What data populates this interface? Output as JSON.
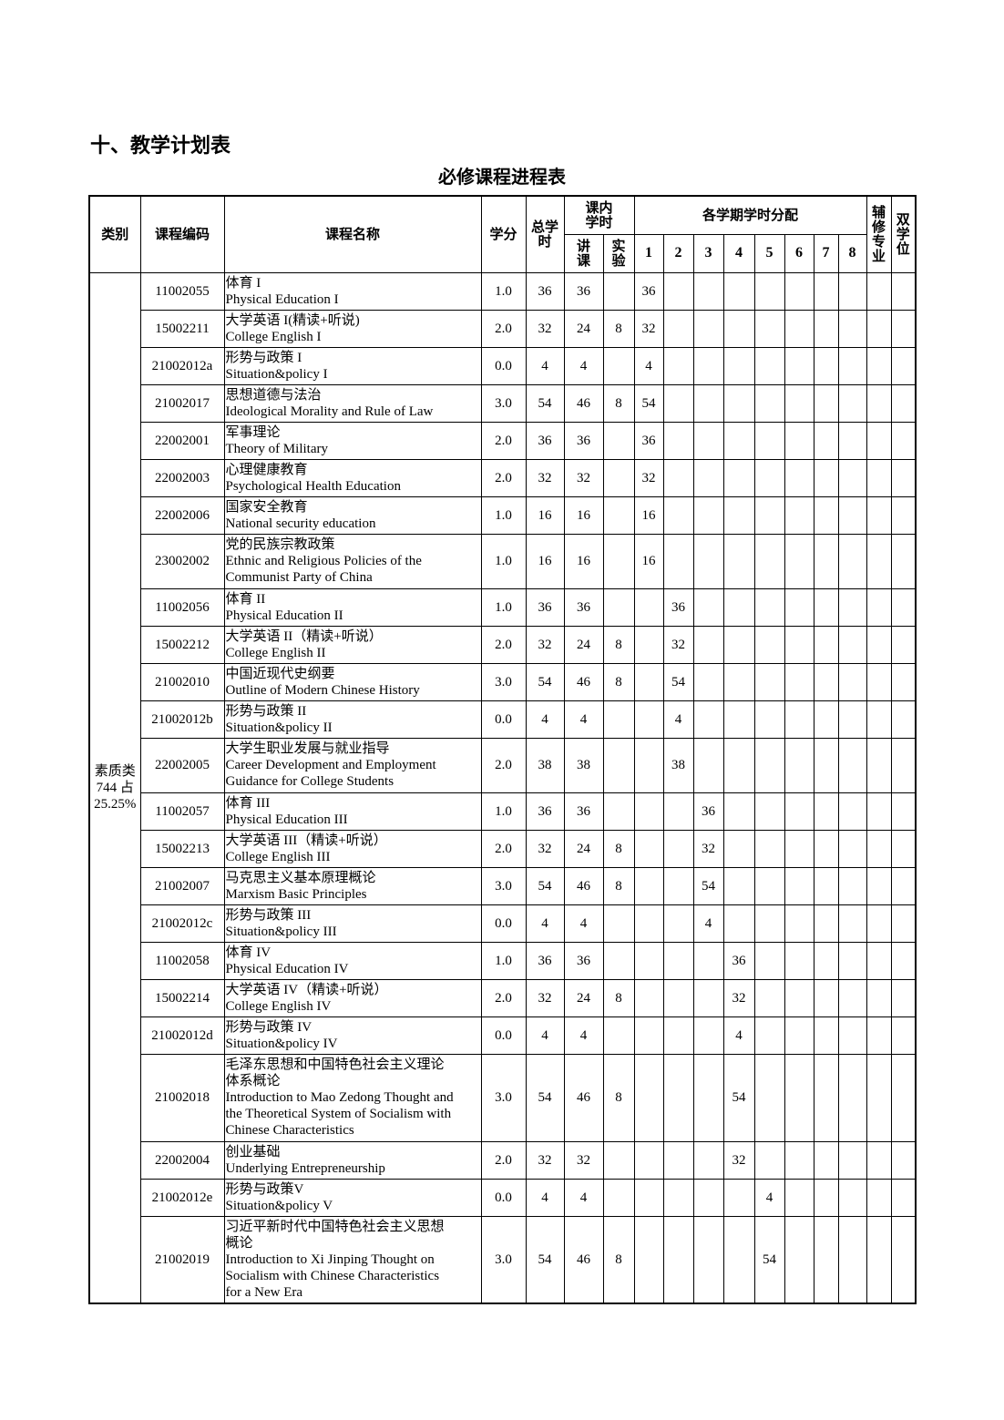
{
  "section_title": "十、教学计划表",
  "table_title": "必修课程进程表",
  "headers": {
    "category": "类别",
    "code": "课程编码",
    "name": "课程名称",
    "credits": "学分",
    "total_hours": "总学时",
    "in_class": "课内学时",
    "lecture": "讲课",
    "lab": "实验",
    "semester_dist": "各学期学时分配",
    "semesters": [
      "1",
      "2",
      "3",
      "4",
      "5",
      "6",
      "7",
      "8"
    ],
    "minor": "辅修专业",
    "double_degree": "双学位"
  },
  "category": {
    "line1": "素质类",
    "line2": "744 占",
    "line3": "25.25%"
  },
  "rows": [
    {
      "code": "11002055",
      "name": [
        "体育 I",
        "Physical Education I"
      ],
      "credits": "1.0",
      "total": "36",
      "lecture": "36",
      "lab": "",
      "sem": [
        "36",
        "",
        "",
        "",
        "",
        "",
        "",
        ""
      ]
    },
    {
      "code": "15002211",
      "name": [
        "大学英语 I(精读+听说)",
        "College English I"
      ],
      "credits": "2.0",
      "total": "32",
      "lecture": "24",
      "lab": "8",
      "sem": [
        "32",
        "",
        "",
        "",
        "",
        "",
        "",
        ""
      ]
    },
    {
      "code": "21002012a",
      "name": [
        "形势与政策 I",
        "Situation&policy I"
      ],
      "credits": "0.0",
      "total": "4",
      "lecture": "4",
      "lab": "",
      "sem": [
        "4",
        "",
        "",
        "",
        "",
        "",
        "",
        ""
      ]
    },
    {
      "code": "21002017",
      "name": [
        "思想道德与法治",
        "Ideological Morality and Rule of Law"
      ],
      "credits": "3.0",
      "total": "54",
      "lecture": "46",
      "lab": "8",
      "sem": [
        "54",
        "",
        "",
        "",
        "",
        "",
        "",
        ""
      ]
    },
    {
      "code": "22002001",
      "name": [
        "军事理论",
        "Theory of Military"
      ],
      "credits": "2.0",
      "total": "36",
      "lecture": "36",
      "lab": "",
      "sem": [
        "36",
        "",
        "",
        "",
        "",
        "",
        "",
        ""
      ]
    },
    {
      "code": "22002003",
      "name": [
        "心理健康教育",
        "Psychological Health Education"
      ],
      "credits": "2.0",
      "total": "32",
      "lecture": "32",
      "lab": "",
      "sem": [
        "32",
        "",
        "",
        "",
        "",
        "",
        "",
        ""
      ]
    },
    {
      "code": "22002006",
      "name": [
        "国家安全教育",
        "National security education"
      ],
      "credits": "1.0",
      "total": "16",
      "lecture": "16",
      "lab": "",
      "sem": [
        "16",
        "",
        "",
        "",
        "",
        "",
        "",
        ""
      ]
    },
    {
      "code": "23002002",
      "name": [
        "党的民族宗教政策",
        "Ethnic and Religious Policies of the",
        "Communist Party of China"
      ],
      "credits": "1.0",
      "total": "16",
      "lecture": "16",
      "lab": "",
      "sem": [
        "16",
        "",
        "",
        "",
        "",
        "",
        "",
        ""
      ]
    },
    {
      "code": "11002056",
      "name": [
        "体育 II",
        "Physical Education II"
      ],
      "credits": "1.0",
      "total": "36",
      "lecture": "36",
      "lab": "",
      "sem": [
        "",
        "36",
        "",
        "",
        "",
        "",
        "",
        ""
      ]
    },
    {
      "code": "15002212",
      "name": [
        "大学英语 II（精读+听说）",
        "College English II"
      ],
      "credits": "2.0",
      "total": "32",
      "lecture": "24",
      "lab": "8",
      "sem": [
        "",
        "32",
        "",
        "",
        "",
        "",
        "",
        ""
      ]
    },
    {
      "code": "21002010",
      "name": [
        "中国近现代史纲要",
        "Outline of Modern Chinese History"
      ],
      "credits": "3.0",
      "total": "54",
      "lecture": "46",
      "lab": "8",
      "sem": [
        "",
        "54",
        "",
        "",
        "",
        "",
        "",
        ""
      ]
    },
    {
      "code": "21002012b",
      "name": [
        "形势与政策 II",
        "Situation&policy II"
      ],
      "credits": "0.0",
      "total": "4",
      "lecture": "4",
      "lab": "",
      "sem": [
        "",
        "4",
        "",
        "",
        "",
        "",
        "",
        ""
      ]
    },
    {
      "code": "22002005",
      "name": [
        "大学生职业发展与就业指导",
        "Career Development and Employment",
        "Guidance for College Students"
      ],
      "credits": "2.0",
      "total": "38",
      "lecture": "38",
      "lab": "",
      "sem": [
        "",
        "38",
        "",
        "",
        "",
        "",
        "",
        ""
      ]
    },
    {
      "code": "11002057",
      "name": [
        "体育 III",
        "Physical Education III"
      ],
      "credits": "1.0",
      "total": "36",
      "lecture": "36",
      "lab": "",
      "sem": [
        "",
        "",
        "36",
        "",
        "",
        "",
        "",
        ""
      ]
    },
    {
      "code": "15002213",
      "name": [
        "大学英语 III（精读+听说）",
        "College English III"
      ],
      "credits": "2.0",
      "total": "32",
      "lecture": "24",
      "lab": "8",
      "sem": [
        "",
        "",
        "32",
        "",
        "",
        "",
        "",
        ""
      ]
    },
    {
      "code": "21002007",
      "name": [
        "马克思主义基本原理概论",
        "Marxism Basic Principles"
      ],
      "credits": "3.0",
      "total": "54",
      "lecture": "46",
      "lab": "8",
      "sem": [
        "",
        "",
        "54",
        "",
        "",
        "",
        "",
        ""
      ]
    },
    {
      "code": "21002012c",
      "name": [
        "形势与政策 III",
        "Situation&policy III"
      ],
      "credits": "0.0",
      "total": "4",
      "lecture": "4",
      "lab": "",
      "sem": [
        "",
        "",
        "4",
        "",
        "",
        "",
        "",
        ""
      ]
    },
    {
      "code": "11002058",
      "name": [
        "体育 IV",
        "Physical Education IV"
      ],
      "credits": "1.0",
      "total": "36",
      "lecture": "36",
      "lab": "",
      "sem": [
        "",
        "",
        "",
        "36",
        "",
        "",
        "",
        ""
      ]
    },
    {
      "code": "15002214",
      "name": [
        "大学英语 IV（精读+听说）",
        "College English IV"
      ],
      "credits": "2.0",
      "total": "32",
      "lecture": "24",
      "lab": "8",
      "sem": [
        "",
        "",
        "",
        "32",
        "",
        "",
        "",
        ""
      ]
    },
    {
      "code": "21002012d",
      "name": [
        "形势与政策 IV",
        "Situation&policy IV"
      ],
      "credits": "0.0",
      "total": "4",
      "lecture": "4",
      "lab": "",
      "sem": [
        "",
        "",
        "",
        "4",
        "",
        "",
        "",
        ""
      ]
    },
    {
      "code": "21002018",
      "name": [
        "毛泽东思想和中国特色社会主义理论",
        "体系概论",
        "Introduction to Mao Zedong Thought and",
        "the Theoretical System of Socialism with",
        "Chinese Characteristics"
      ],
      "credits": "3.0",
      "total": "54",
      "lecture": "46",
      "lab": "8",
      "sem": [
        "",
        "",
        "",
        "54",
        "",
        "",
        "",
        ""
      ]
    },
    {
      "code": "22002004",
      "name": [
        "创业基础",
        "Underlying Entrepreneurship"
      ],
      "credits": "2.0",
      "total": "32",
      "lecture": "32",
      "lab": "",
      "sem": [
        "",
        "",
        "",
        "32",
        "",
        "",
        "",
        ""
      ]
    },
    {
      "code": "21002012e",
      "name": [
        "形势与政策V",
        "Situation&policy V"
      ],
      "credits": "0.0",
      "total": "4",
      "lecture": "4",
      "lab": "",
      "sem": [
        "",
        "",
        "",
        "",
        "4",
        "",
        "",
        ""
      ]
    },
    {
      "code": "21002019",
      "name": [
        "习近平新时代中国特色社会主义思想",
        "概论",
        "Introduction to Xi Jinping Thought on",
        "Socialism with Chinese Characteristics",
        "for a New Era"
      ],
      "credits": "3.0",
      "total": "54",
      "lecture": "46",
      "lab": "8",
      "sem": [
        "",
        "",
        "",
        "",
        "54",
        "",
        "",
        ""
      ]
    }
  ]
}
